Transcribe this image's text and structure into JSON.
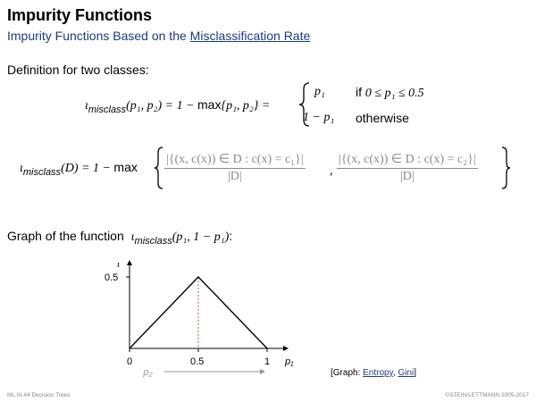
{
  "slide": {
    "title": "Impurity Functions",
    "subtitle_prefix": "Impurity Functions Based on the ",
    "subtitle_link": "Misclassification Rate"
  },
  "definition": {
    "heading": "Definition for two classes:",
    "lhs_func": "ι",
    "lhs_sub": "misclass",
    "lhs_args": "(p₁, p₂) = 1 − ",
    "lhs_max": "max",
    "lhs_set": "{p₁, p₂} =",
    "case1_expr": "p₁",
    "case1_cond_word": "if ",
    "case1_cond": "0 ≤ p₁ ≤ 0.5",
    "case2_expr": "1 − p₁",
    "case2_cond_word": "otherwise"
  },
  "general": {
    "lhs_func": "ι",
    "lhs_sub": "misclass",
    "lhs_arg": "(D) = 1 − ",
    "max_word": "max",
    "frac1_num": "|{(x, c(x)) ∈ D : c(x) = c₁}|",
    "frac1_den": "|D|",
    "frac2_num": "|{(x, c(x)) ∈ D : c(x) = c₂}|",
    "frac2_den": "|D|",
    "separator": ","
  },
  "graph": {
    "heading": "Graph of the function",
    "func": "ι",
    "func_sub": "misclass",
    "func_args": "(p₁, 1 − p₁)",
    "colon": ":",
    "y_axis_label": "ι",
    "y_tick": "0.5",
    "x_ticks": [
      "0",
      "0.5",
      "1"
    ],
    "x_axis_label": "p₁",
    "p2_label": "p₂",
    "links_prefix": "[Graph: ",
    "link_entropy": "Entropy",
    "links_sep": ", ",
    "link_gini": "Gini",
    "links_suffix": "]",
    "line_color": "#000000",
    "dotted_color": "#e05a2b"
  },
  "chart_data": {
    "type": "line",
    "x": [
      0,
      0.5,
      1
    ],
    "series": [
      {
        "values": [
          0,
          0.5,
          0
        ]
      }
    ],
    "xlabel": "p₁",
    "ylabel": "ι",
    "xlim": [
      0,
      1
    ],
    "ylim": [
      0,
      0.5
    ]
  },
  "footer": {
    "left": "ML:III-44   Decision Trees",
    "right": "©STEIN/LETTMANN 2005-2017"
  }
}
